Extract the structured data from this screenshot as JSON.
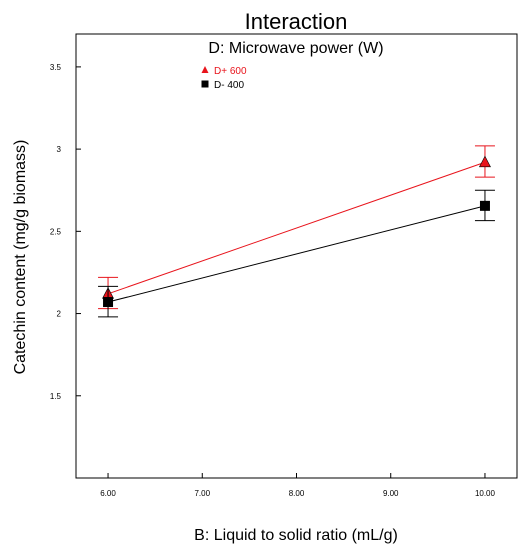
{
  "chart_data": {
    "type": "line",
    "title": "Interaction",
    "subtitle": "D: Microwave power (W)",
    "xlabel": "B: Liquid to solid ratio (mL/g)",
    "ylabel": "Catechin content (mg/g biomass)",
    "xlim": [
      5.66,
      10.34
    ],
    "ylim": [
      1.0,
      3.7
    ],
    "x_ticks": [
      {
        "value": 6,
        "label": "6.00"
      },
      {
        "value": 7,
        "label": "7.00"
      },
      {
        "value": 8,
        "label": "8.00"
      },
      {
        "value": 9,
        "label": "9.00"
      },
      {
        "value": 10,
        "label": "10.00"
      }
    ],
    "y_ticks": [
      {
        "value": 1.5,
        "label": "1.5"
      },
      {
        "value": 2,
        "label": "2"
      },
      {
        "value": 2.5,
        "label": "2.5"
      },
      {
        "value": 3,
        "label": "3"
      },
      {
        "value": 3.5,
        "label": "3.5"
      }
    ],
    "legend_placement": "top-left",
    "grid": false,
    "series": [
      {
        "name": "D+ 600",
        "marker": "triangle",
        "color": "#e8141c",
        "x": [
          6,
          10
        ],
        "y": [
          2.12,
          2.92
        ],
        "error_low": [
          2.03,
          2.83
        ],
        "error_high": [
          2.22,
          3.02
        ]
      },
      {
        "name": "D- 400",
        "marker": "square",
        "color": "#000000",
        "x": [
          6,
          10
        ],
        "y": [
          2.07,
          2.655
        ],
        "error_low": [
          1.98,
          2.565
        ],
        "error_high": [
          2.165,
          2.75
        ]
      }
    ]
  }
}
